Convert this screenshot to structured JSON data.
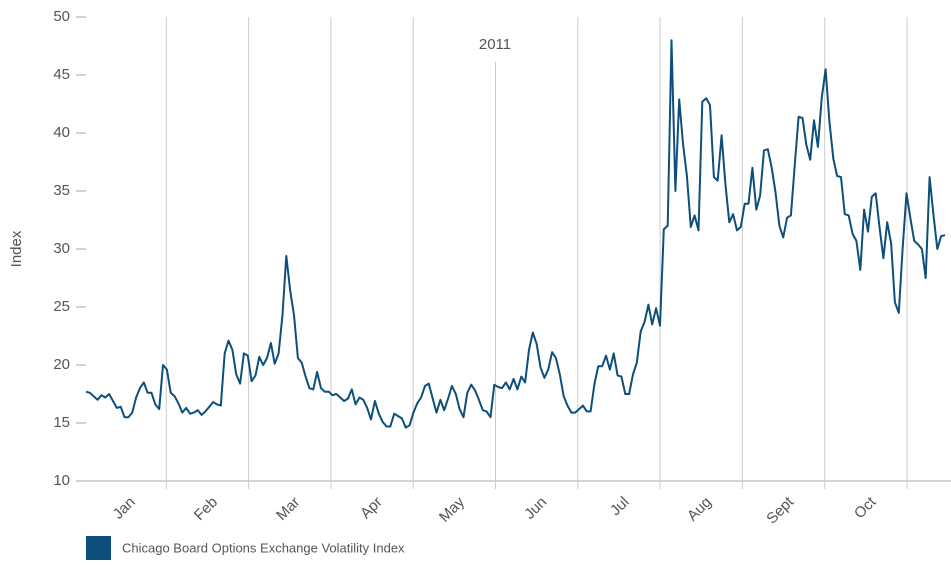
{
  "chart_data": {
    "type": "line",
    "annotation": "2011",
    "y_label": "Index",
    "categories": [
      "Jan",
      "Feb",
      "Mar",
      "Apr",
      "May",
      "Jun",
      "Jul",
      "Aug",
      "Sept",
      "Oct",
      null
    ],
    "series": [
      {
        "name": "Chicago Board Options Exchange Volatility Index",
        "color": "#0d4f7a",
        "values": [
          [
            17.7,
            17.6,
            17.3,
            17.0,
            17.4,
            17.2,
            17.5,
            16.9,
            16.3,
            16.4,
            15.5,
            15.5,
            15.9,
            17.2,
            18.0,
            18.5,
            17.6,
            17.6,
            16.6,
            16.2
          ],
          [
            20.0,
            19.6,
            17.6,
            17.3,
            16.7,
            15.9,
            16.3,
            15.8,
            15.9,
            16.1,
            15.7,
            16.0,
            16.4,
            16.8,
            16.6,
            16.5,
            21.0,
            22.1,
            21.3,
            19.2
          ],
          [
            18.4,
            21.0,
            20.8,
            18.6,
            19.1,
            20.7,
            20.0,
            20.6,
            21.9,
            20.1,
            21.0,
            24.3,
            29.4,
            26.4,
            24.3,
            20.6,
            20.2,
            19.0,
            18.0,
            17.9,
            19.4,
            18.0
          ],
          [
            17.7,
            17.7,
            17.4,
            17.5,
            17.2,
            16.9,
            17.1,
            17.9,
            16.6,
            17.2,
            17.0,
            16.3,
            15.3,
            16.9,
            15.8,
            15.1,
            14.7,
            14.7,
            15.8,
            15.6
          ],
          [
            15.4,
            14.6,
            14.8,
            15.9,
            16.7,
            17.2,
            18.2,
            18.4,
            17.1,
            15.9,
            17.0,
            16.1,
            17.1,
            18.2,
            17.5,
            16.2,
            15.5,
            17.6,
            18.3,
            17.8,
            17.0,
            16.1
          ],
          [
            16.0,
            15.5,
            18.3,
            18.1,
            18.0,
            18.5,
            17.9,
            18.8,
            17.9,
            19.0,
            18.5,
            21.3,
            22.8,
            21.8,
            19.8,
            18.9,
            19.6,
            21.1,
            20.6,
            19.2,
            17.3
          ],
          [
            16.5,
            15.9,
            15.9,
            16.2,
            16.5,
            16.0,
            16.0,
            18.4,
            19.9,
            19.9,
            20.8,
            19.6,
            21.0,
            19.1,
            19.0,
            17.5,
            17.5,
            19.2,
            20.2,
            22.9,
            23.7,
            25.2,
            23.5
          ],
          [
            24.9,
            23.4,
            31.7,
            32.0,
            48.0,
            35.0,
            42.9,
            39.0,
            36.3,
            31.9,
            32.9,
            31.6,
            42.7,
            43.0,
            42.4,
            36.2,
            35.9,
            39.8,
            35.6,
            32.3,
            33.0,
            31.6
          ],
          [
            31.9,
            33.9,
            33.9,
            37.0,
            33.4,
            34.6,
            38.5,
            38.6,
            37.0,
            34.9,
            32.0,
            31.0,
            32.7,
            32.9,
            37.3,
            41.4,
            41.3,
            39.0,
            37.7,
            41.1,
            38.8,
            43.0
          ],
          [
            45.5,
            41.0,
            37.8,
            36.3,
            36.2,
            33.0,
            32.9,
            31.3,
            30.7,
            28.2,
            33.4,
            31.5,
            34.5,
            34.8,
            31.9,
            29.2,
            32.3,
            30.5,
            25.4,
            24.5,
            30.0
          ],
          [
            34.8,
            32.7,
            30.7,
            30.4,
            30.0,
            27.5,
            36.2,
            33.0,
            30.0,
            31.1,
            31.2
          ]
        ]
      }
    ],
    "ylim": [
      10,
      50
    ],
    "yticks": [
      10,
      15,
      20,
      25,
      30,
      35,
      40,
      45,
      50
    ],
    "grid": true
  }
}
